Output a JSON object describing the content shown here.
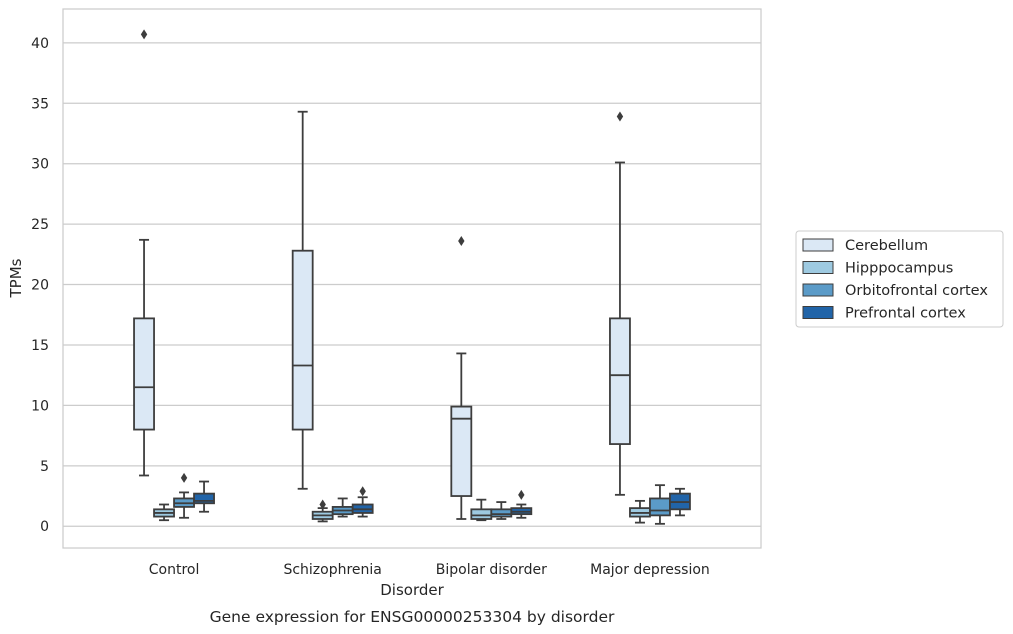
{
  "caption": "Gene expression for ENSG00000253304 by disorder",
  "chart_data": {
    "type": "boxplot",
    "xlabel": "Disorder",
    "ylabel": "TPMs",
    "ylim": [
      -1.8,
      42.8
    ],
    "yticks": [
      0,
      5,
      10,
      15,
      20,
      25,
      30,
      35,
      40
    ],
    "grid": "horizontal",
    "legend_position": "right",
    "categories": [
      "Control",
      "Schizophrenia",
      "Bipolar disorder",
      "Major depression"
    ],
    "series": [
      {
        "name": "Cerebellum",
        "color": "#dbe8f5",
        "boxes": [
          {
            "whislo": 4.2,
            "q1": 8.0,
            "med": 11.5,
            "q3": 17.2,
            "whishi": 23.7,
            "fliers": [
              40.7
            ]
          },
          {
            "whislo": 3.1,
            "q1": 8.0,
            "med": 13.3,
            "q3": 22.8,
            "whishi": 34.3,
            "fliers": []
          },
          {
            "whislo": 0.6,
            "q1": 2.5,
            "med": 8.9,
            "q3": 9.9,
            "whishi": 14.3,
            "fliers": [
              23.6
            ]
          },
          {
            "whislo": 2.6,
            "q1": 6.8,
            "med": 12.5,
            "q3": 17.2,
            "whishi": 30.1,
            "fliers": [
              33.9
            ]
          }
        ]
      },
      {
        "name": "Hipppocampus",
        "color": "#9ecae1",
        "boxes": [
          {
            "whislo": 0.5,
            "q1": 0.8,
            "med": 1.1,
            "q3": 1.4,
            "whishi": 1.8,
            "fliers": []
          },
          {
            "whislo": 0.4,
            "q1": 0.6,
            "med": 0.9,
            "q3": 1.2,
            "whishi": 1.5,
            "fliers": [
              1.8
            ]
          },
          {
            "whislo": 0.5,
            "q1": 0.6,
            "med": 0.9,
            "q3": 1.4,
            "whishi": 2.2,
            "fliers": []
          },
          {
            "whislo": 0.3,
            "q1": 0.8,
            "med": 1.1,
            "q3": 1.5,
            "whishi": 2.1,
            "fliers": []
          }
        ]
      },
      {
        "name": "Orbitofrontal cortex",
        "color": "#5b9bc8",
        "boxes": [
          {
            "whislo": 0.7,
            "q1": 1.6,
            "med": 1.9,
            "q3": 2.3,
            "whishi": 2.8,
            "fliers": [
              4.0
            ]
          },
          {
            "whislo": 0.8,
            "q1": 1.0,
            "med": 1.3,
            "q3": 1.6,
            "whishi": 2.3,
            "fliers": []
          },
          {
            "whislo": 0.6,
            "q1": 0.8,
            "med": 1.0,
            "q3": 1.4,
            "whishi": 2.0,
            "fliers": []
          },
          {
            "whislo": 0.2,
            "q1": 0.9,
            "med": 1.3,
            "q3": 2.3,
            "whishi": 3.4,
            "fliers": []
          }
        ]
      },
      {
        "name": "Prefrontal cortex",
        "color": "#2164a8",
        "boxes": [
          {
            "whislo": 1.2,
            "q1": 1.9,
            "med": 2.1,
            "q3": 2.7,
            "whishi": 3.7,
            "fliers": []
          },
          {
            "whislo": 0.8,
            "q1": 1.1,
            "med": 1.4,
            "q3": 1.8,
            "whishi": 2.4,
            "fliers": [
              2.9
            ]
          },
          {
            "whislo": 0.7,
            "q1": 1.0,
            "med": 1.2,
            "q3": 1.5,
            "whishi": 1.8,
            "fliers": [
              2.6
            ]
          },
          {
            "whislo": 0.9,
            "q1": 1.4,
            "med": 2.0,
            "q3": 2.7,
            "whishi": 3.1,
            "fliers": []
          }
        ]
      }
    ]
  }
}
